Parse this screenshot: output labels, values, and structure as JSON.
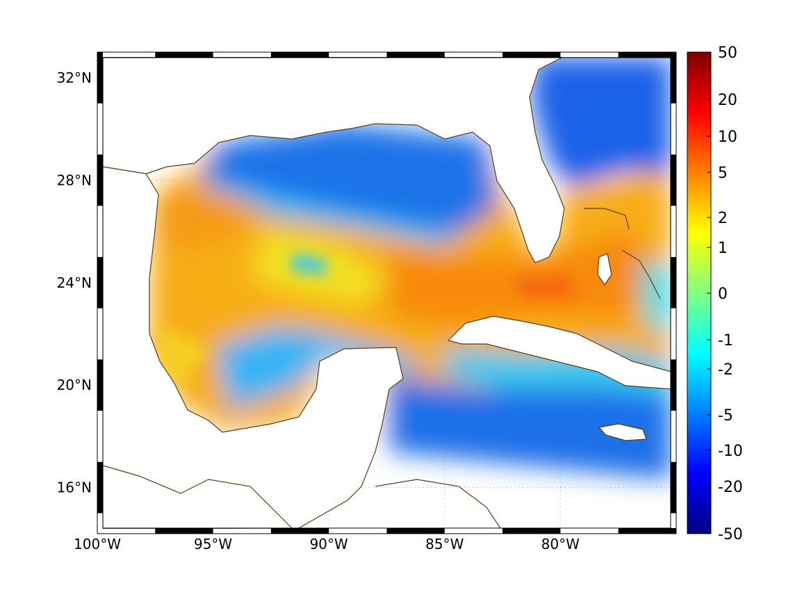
{
  "map": {
    "extent": {
      "lon": [
        -100,
        -75
      ],
      "lat": [
        14.2,
        33
      ]
    },
    "lat_labels": [
      {
        "value": 32,
        "text": "32°N"
      },
      {
        "value": 28,
        "text": "28°N"
      },
      {
        "value": 24,
        "text": "24°N"
      },
      {
        "value": 20,
        "text": "20°N"
      },
      {
        "value": 16,
        "text": "16°N"
      }
    ],
    "lon_labels": [
      {
        "value": -100,
        "text": "100°W"
      },
      {
        "value": -95,
        "text": "95°W"
      },
      {
        "value": -90,
        "text": "90°W"
      },
      {
        "value": -85,
        "text": "85°W"
      },
      {
        "value": -80,
        "text": "80°W"
      }
    ],
    "gridlines": "dotted",
    "frame": "alternating black-white",
    "coastline_color": "#5c3d0e",
    "field_colormap": "jet"
  },
  "colorbar": {
    "ticks": [
      "50",
      "20",
      "10",
      "5",
      "2",
      "1",
      "0",
      "-1",
      "-2",
      "-5",
      "-10",
      "-20",
      "-50"
    ],
    "colors": [
      "#800000",
      "#ff0000",
      "#ff8000",
      "#ffff00",
      "#80ff80",
      "#00ffff",
      "#0080ff",
      "#0000ff",
      "#000080"
    ]
  }
}
